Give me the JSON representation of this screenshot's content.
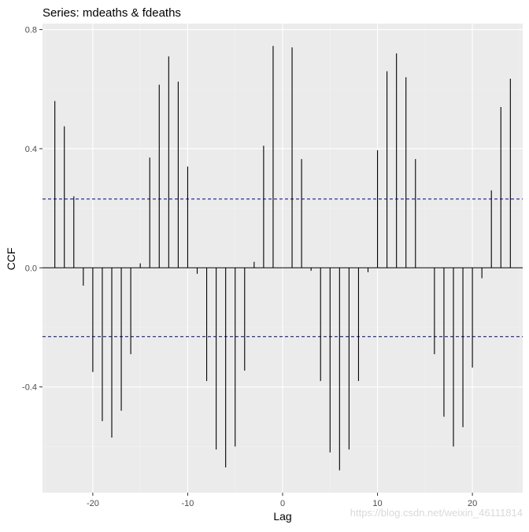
{
  "chart_data": {
    "type": "bar",
    "title": "Series: mdeaths & fdeaths",
    "xlabel": "Lag",
    "ylabel": "CCF",
    "xlim": [
      -25.3,
      25.3
    ],
    "ylim": [
      -0.755,
      0.82
    ],
    "x_ticks": [
      -20,
      -10,
      0,
      10,
      20
    ],
    "x_tick_labels": [
      "-20",
      "-10",
      "0",
      "10",
      "20"
    ],
    "y_ticks": [
      -0.4,
      0.0,
      0.4,
      0.8
    ],
    "y_tick_labels": [
      "-0.4",
      "0.0",
      "0.4",
      "0.8"
    ],
    "confidence_bounds": [
      0.231,
      -0.231
    ],
    "grid": true,
    "lags": [
      -24,
      -23,
      -22,
      -21,
      -20,
      -19,
      -18,
      -17,
      -16,
      -15,
      -14,
      -13,
      -12,
      -11,
      -10,
      -9,
      -8,
      -7,
      -6,
      -5,
      -4,
      -3,
      -2,
      -1,
      0,
      1,
      2,
      3,
      4,
      5,
      6,
      7,
      8,
      9,
      10,
      11,
      12,
      13,
      14,
      15,
      16,
      17,
      18,
      19,
      20,
      21,
      22,
      23,
      24
    ],
    "values": [
      0.56,
      0.475,
      0.24,
      -0.06,
      -0.35,
      -0.515,
      -0.57,
      -0.48,
      -0.29,
      0.015,
      0.37,
      0.615,
      0.71,
      0.625,
      0.34,
      -0.02,
      -0.38,
      -0.61,
      -0.67,
      -0.6,
      -0.345,
      0.02,
      0.41,
      0.745,
      0.0,
      0.74,
      0.365,
      -0.01,
      -0.38,
      -0.62,
      -0.68,
      -0.61,
      -0.38,
      -0.015,
      0.395,
      0.66,
      0.72,
      0.64,
      0.365,
      0.0,
      -0.29,
      -0.5,
      -0.6,
      -0.535,
      -0.335,
      -0.035,
      0.26,
      0.54,
      0.635
    ],
    "colors": {
      "panel": "#ebebeb",
      "grid_major": "#ffffff",
      "grid_minor": "#f2f2f2",
      "bars": "#000000",
      "bounds": "#00008b",
      "zero_line": "#000000"
    }
  },
  "watermark": "https://blog.csdn.net/weixin_46111814"
}
